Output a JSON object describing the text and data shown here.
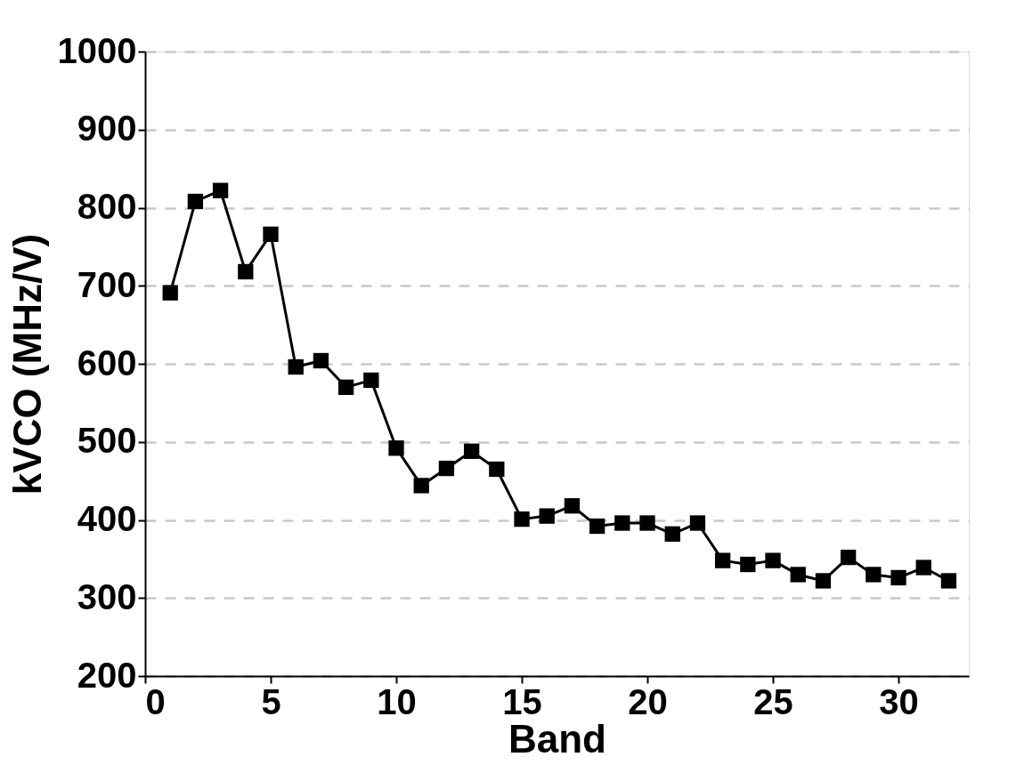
{
  "chart_data": {
    "type": "line",
    "xlabel": "Band",
    "ylabel": "kVCO (MHz/V)",
    "x": [
      1,
      2,
      3,
      4,
      5,
      6,
      7,
      8,
      9,
      10,
      11,
      12,
      13,
      14,
      15,
      16,
      17,
      18,
      19,
      20,
      21,
      22,
      23,
      24,
      25,
      26,
      27,
      28,
      29,
      30,
      31,
      32
    ],
    "series": [
      {
        "color": "#000000",
        "values": [
          691,
          808,
          822,
          718,
          766,
          596,
          604,
          570,
          579,
          492,
          444,
          466,
          488,
          465,
          401,
          405,
          418,
          392,
          396,
          396,
          382,
          396,
          348,
          343,
          348,
          330,
          322,
          352,
          330,
          326,
          339,
          322
        ]
      }
    ],
    "xlim": [
      0,
      32.8
    ],
    "xticks": [
      0,
      5,
      10,
      15,
      20,
      25,
      30
    ],
    "ylim": [
      200,
      1000
    ],
    "yticks": [
      200,
      300,
      400,
      500,
      600,
      700,
      800,
      900,
      1000
    ],
    "grid": "y",
    "marker": "square",
    "line_style": "solid"
  }
}
